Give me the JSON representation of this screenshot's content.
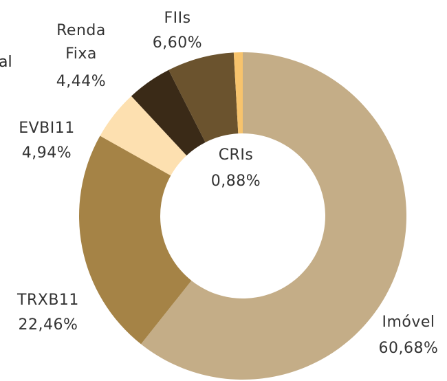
{
  "chart_data": {
    "type": "donut",
    "categories": [
      "Imóvel",
      "TRXB11",
      "EVBI11",
      "Renda Fixa",
      "FIIs",
      "CRIs"
    ],
    "values": [
      60.68,
      22.46,
      4.94,
      4.44,
      6.6,
      0.88
    ],
    "value_labels": [
      "60,68%",
      "22,46%",
      "4,94%",
      "4,44%",
      "6,60%",
      "0,88%"
    ],
    "colors": [
      "#c4ad87",
      "#a58346",
      "#fde0b0",
      "#3a2a17",
      "#6b532e",
      "#f7c36c"
    ],
    "clipped_text": "al"
  }
}
